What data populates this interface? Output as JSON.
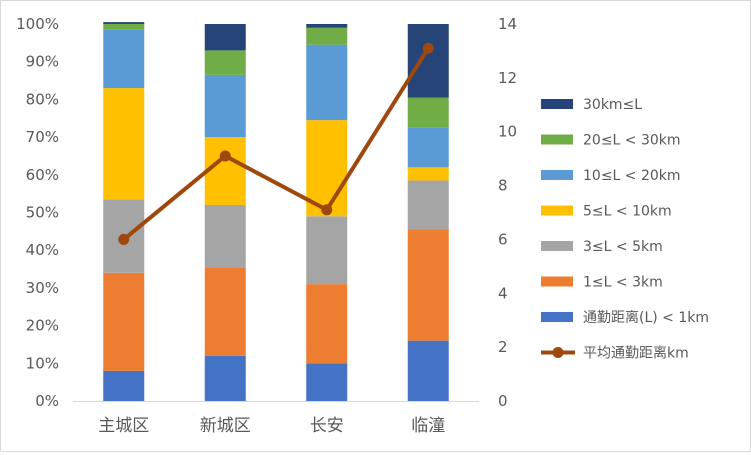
{
  "chart_data": {
    "type": "bar",
    "stacked": "percent",
    "categories": [
      "主城区",
      "新城区",
      "长安",
      "临潼"
    ],
    "series": [
      {
        "name": "通勤距离(L) < 1km",
        "color": "#4472C4",
        "values": [
          0.08,
          0.12,
          0.1,
          0.16
        ]
      },
      {
        "name": "1≤L < 3km",
        "color": "#ED7D31",
        "values": [
          0.26,
          0.235,
          0.21,
          0.295
        ]
      },
      {
        "name": "3≤L < 5km",
        "color": "#A5A5A5",
        "values": [
          0.195,
          0.165,
          0.18,
          0.13
        ]
      },
      {
        "name": "5≤L < 10km",
        "color": "#FFC000",
        "values": [
          0.295,
          0.18,
          0.255,
          0.035
        ]
      },
      {
        "name": "10≤L < 20km",
        "color": "#5B9BD5",
        "values": [
          0.155,
          0.165,
          0.2,
          0.105
        ]
      },
      {
        "name": "20≤L < 30km",
        "color": "#70AD47",
        "values": [
          0.015,
          0.065,
          0.045,
          0.08
        ]
      },
      {
        "name": "30km≤L",
        "color": "#264478",
        "values": [
          0.005,
          0.07,
          0.01,
          0.195
        ]
      }
    ],
    "line": {
      "name": "平均通勤距离km",
      "color": "#9E480E",
      "values": [
        6.0,
        9.1,
        7.1,
        13.1
      ],
      "axis": "right"
    },
    "left_axis": {
      "ylim": [
        0,
        1
      ],
      "ticks": [
        "0%",
        "10%",
        "20%",
        "30%",
        "40%",
        "50%",
        "60%",
        "70%",
        "80%",
        "90%",
        "100%"
      ]
    },
    "right_axis": {
      "ylim": [
        0,
        14
      ],
      "ticks": [
        "0",
        "2",
        "4",
        "6",
        "8",
        "10",
        "12",
        "14"
      ]
    },
    "legend_placement": "right",
    "grid": false
  }
}
